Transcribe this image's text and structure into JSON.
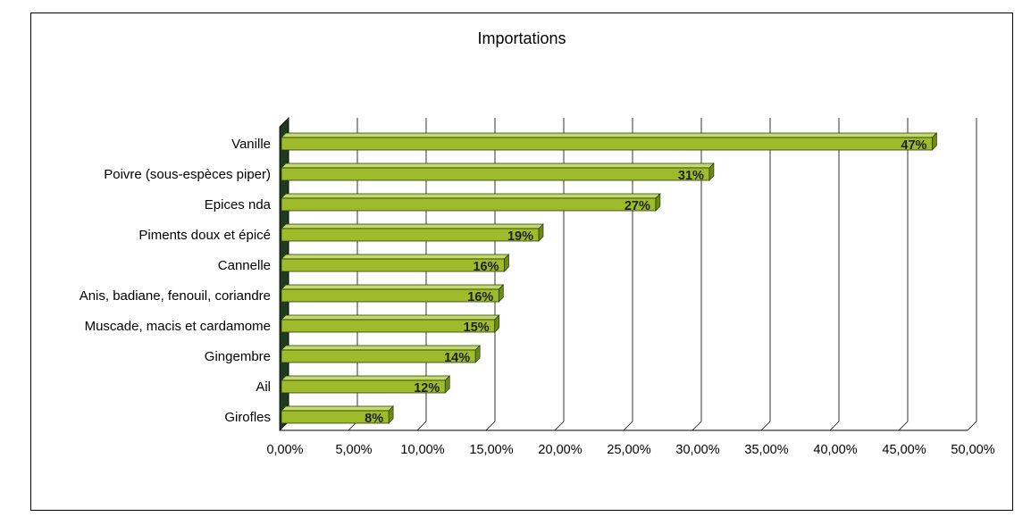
{
  "chart_data": {
    "type": "bar",
    "orientation": "horizontal",
    "title": "Importations",
    "categories": [
      "Vanille",
      "Poivre (sous-espèces piper)",
      "Epices nda",
      "Piments doux et épicé",
      "Cannelle",
      "Anis, badiane, fenouil, coriandre",
      "Muscade, macis et cardamome",
      "Gingembre",
      "Ail",
      "Girofles"
    ],
    "values": [
      47.3,
      31.1,
      27.2,
      18.7,
      16.2,
      15.8,
      15.5,
      14.1,
      11.9,
      7.8
    ],
    "data_labels": [
      "47%",
      "31%",
      "27%",
      "19%",
      "16%",
      "16%",
      "15%",
      "14%",
      "12%",
      "8%"
    ],
    "xlim": [
      0,
      50
    ],
    "xticks": [
      0,
      5,
      10,
      15,
      20,
      25,
      30,
      35,
      40,
      45,
      50
    ],
    "xtick_labels": [
      "0,00%",
      "5,00%",
      "10,00%",
      "15,00%",
      "20,00%",
      "25,00%",
      "30,00%",
      "35,00%",
      "40,00%",
      "45,00%",
      "50,00%"
    ],
    "grid": true,
    "legend": false,
    "colors": {
      "bar_fill": "#9dbb2a",
      "bar_top": "#c3d96a",
      "bar_side": "#6d8a14",
      "wall": "#1f3a1f",
      "grid": "#000000"
    }
  }
}
